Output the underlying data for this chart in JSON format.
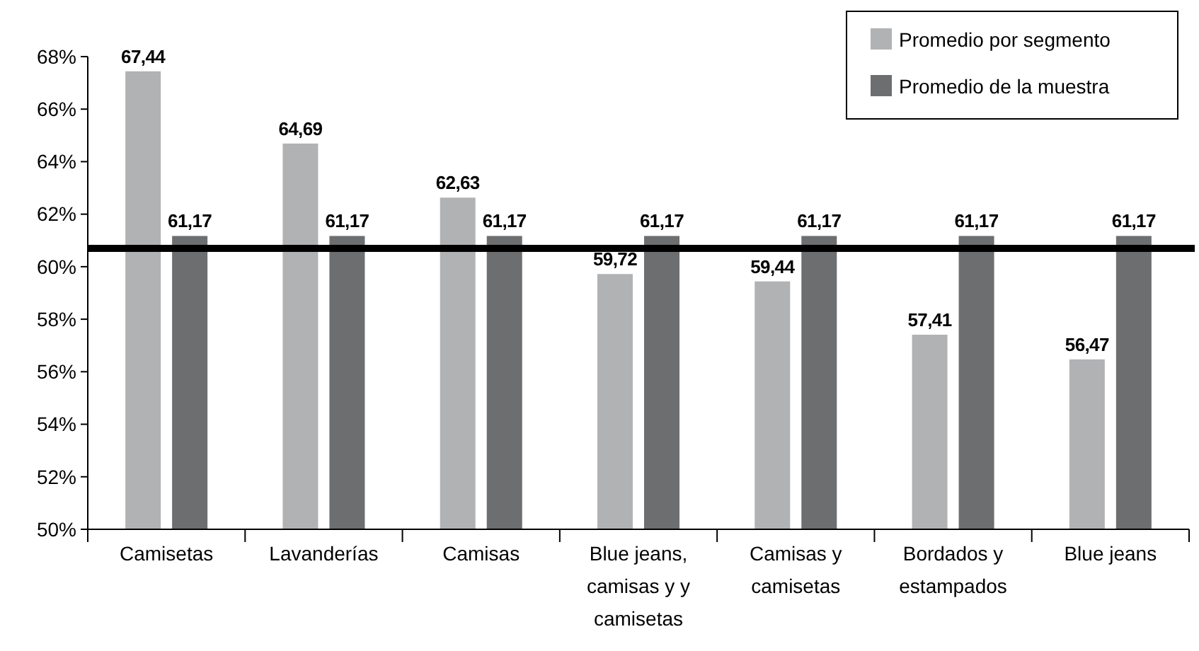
{
  "chart_data": {
    "type": "bar",
    "categories": [
      "Camisetas",
      "Lavanderías",
      "Camisas",
      "Blue jeans, camisas y y camisetas",
      "Camisas y camisetas",
      "Bordados y estampados",
      "Blue jeans"
    ],
    "series": [
      {
        "name": "Promedio por segmento",
        "color": "#b1b2b4",
        "values": [
          67.44,
          64.69,
          62.63,
          59.72,
          59.44,
          57.41,
          56.47
        ],
        "value_labels": [
          "67,44",
          "64,69",
          "62,63",
          "59,72",
          "59,44",
          "57,41",
          "56,47"
        ]
      },
      {
        "name": "Promedio de la muestra",
        "color": "#6d6e70",
        "values": [
          61.17,
          61.17,
          61.17,
          61.17,
          61.17,
          61.17,
          61.17
        ],
        "value_labels": [
          "61,17",
          "61,17",
          "61,17",
          "61,17",
          "61,17",
          "61,17",
          "61,17"
        ]
      }
    ],
    "ylim": [
      50,
      68
    ],
    "yticks": [
      {
        "value": 50,
        "label": "50%"
      },
      {
        "value": 52,
        "label": "52%"
      },
      {
        "value": 54,
        "label": "54%"
      },
      {
        "value": 56,
        "label": "56%"
      },
      {
        "value": 58,
        "label": "58%"
      },
      {
        "value": 60,
        "label": "60%"
      },
      {
        "value": 62,
        "label": "62%"
      },
      {
        "value": 64,
        "label": "64%"
      },
      {
        "value": 66,
        "label": "66%"
      },
      {
        "value": 68,
        "label": "68%"
      }
    ],
    "ref_lines": [
      {
        "axis": "y",
        "value": 60.7,
        "color": "#000000"
      }
    ],
    "grid": false,
    "legend": "top right"
  }
}
